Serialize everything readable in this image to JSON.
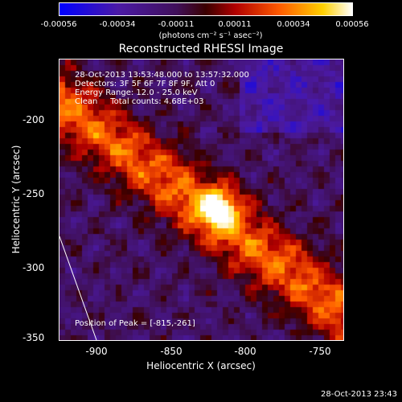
{
  "colorbar": {
    "ticks": [
      "-0.00056",
      "-0.00034",
      "-0.00011",
      "0.00011",
      "0.00034",
      "0.00056"
    ],
    "units": "(photons cm⁻² s⁻¹ asec⁻²)"
  },
  "title": "Reconstructed RHESSI Image",
  "info": {
    "time": "28-Oct-2013 13:53:48.000 to 13:57:32.000",
    "detectors": "Detectors: 3F 5F 6F 7F 8F 9F, Att 0",
    "energy": "Energy Range: 12.0 - 25.0 keV",
    "clean": "Clean     Total counts: 4.68E+03"
  },
  "peak": "Position of Peak = [-815,-261]",
  "axes": {
    "xlabel": "Heliocentric X (arcsec)",
    "ylabel": "Heliocentric Y (arcsec)",
    "xticks": [
      "-900",
      "-850",
      "-800",
      "-750"
    ],
    "yticks": [
      "-200",
      "-250",
      "-300",
      "-350"
    ]
  },
  "footer_timestamp": "28-Oct-2013 23:43"
}
